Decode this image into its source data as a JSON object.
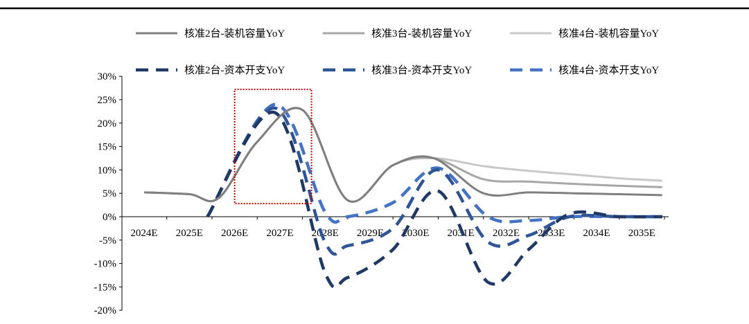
{
  "chart_data": {
    "type": "line",
    "title": "",
    "xlabel": "",
    "ylabel": "",
    "categories": [
      "2024E",
      "2025E",
      "2026E",
      "2027E",
      "2028E",
      "2029E",
      "2030E",
      "2031E",
      "2032E",
      "2033E",
      "2034E",
      "2035E"
    ],
    "ylim": [
      -0.2,
      0.3
    ],
    "yticks": [
      "-20%",
      "-15%",
      "-10%",
      "-5%",
      "0%",
      "5%",
      "10%",
      "15%",
      "20%",
      "25%",
      "30%"
    ],
    "legend_position": "top",
    "series": [
      {
        "name": "核准2台-装机容量YoY",
        "style": "solid",
        "color": "#7f7f7f",
        "x": [
          "2024E",
          "2025E",
          "2026E",
          "2026E",
          "2027E",
          "2028E",
          "2029E",
          "2030E",
          "2031E",
          "2032E",
          "2033E",
          "2034E",
          "2035E"
        ],
        "points": [
          [
            0,
            0.052
          ],
          [
            1,
            0.048
          ],
          [
            1.65,
            0.04
          ],
          [
            2.5,
            0.16
          ],
          [
            3.5,
            0.228
          ],
          [
            4.5,
            0.035
          ],
          [
            5.5,
            0.11
          ],
          [
            6.4,
            0.125
          ],
          [
            7.5,
            0.05
          ],
          [
            8.5,
            0.052
          ],
          [
            9.5,
            0.05
          ],
          [
            10.5,
            0.048
          ],
          [
            11.45,
            0.046
          ]
        ]
      },
      {
        "name": "核准3台-装机容量YoY",
        "style": "solid",
        "color": "#a6a6a6",
        "points": [
          [
            0,
            0.052
          ],
          [
            1,
            0.048
          ],
          [
            1.65,
            0.04
          ],
          [
            2.5,
            0.16
          ],
          [
            3.5,
            0.228
          ],
          [
            4.5,
            0.035
          ],
          [
            5.5,
            0.11
          ],
          [
            6.4,
            0.125
          ],
          [
            7.5,
            0.08
          ],
          [
            8.5,
            0.075
          ],
          [
            9.5,
            0.07
          ],
          [
            10.5,
            0.066
          ],
          [
            11.45,
            0.063
          ]
        ]
      },
      {
        "name": "核准4台-装机容量YoY",
        "style": "solid",
        "color": "#c8c8c8",
        "points": [
          [
            0,
            0.052
          ],
          [
            1,
            0.048
          ],
          [
            1.65,
            0.04
          ],
          [
            2.5,
            0.16
          ],
          [
            3.5,
            0.228
          ],
          [
            4.5,
            0.035
          ],
          [
            5.5,
            0.11
          ],
          [
            6.4,
            0.125
          ],
          [
            7.5,
            0.108
          ],
          [
            8.5,
            0.098
          ],
          [
            9.5,
            0.09
          ],
          [
            10.5,
            0.082
          ],
          [
            11.45,
            0.077
          ]
        ]
      },
      {
        "name": "核准2台-资本开支YoY",
        "style": "dashed",
        "color": "#1f3864",
        "points": [
          [
            1.4,
            0.0
          ],
          [
            2.9,
            0.222
          ],
          [
            4.0,
            -0.12
          ],
          [
            4.5,
            -0.13
          ],
          [
            5.5,
            -0.07
          ],
          [
            6.5,
            0.055
          ],
          [
            7.6,
            -0.14
          ],
          [
            8.5,
            -0.07
          ],
          [
            9.4,
            0.006
          ],
          [
            10.5,
            0.0
          ],
          [
            11.45,
            0.0
          ]
        ]
      },
      {
        "name": "核准3台-资本开支YoY",
        "style": "dashed",
        "color": "#2f5597",
        "points": [
          [
            1.4,
            0.0
          ],
          [
            2.9,
            0.232
          ],
          [
            4.0,
            -0.055
          ],
          [
            4.5,
            -0.062
          ],
          [
            5.5,
            -0.025
          ],
          [
            6.5,
            0.1
          ],
          [
            7.6,
            -0.054
          ],
          [
            8.5,
            -0.04
          ],
          [
            9.4,
            0.0
          ],
          [
            10.5,
            0.0
          ],
          [
            11.45,
            0.0
          ]
        ]
      },
      {
        "name": "核准4台-资本开支YoY",
        "style": "dashed",
        "color": "#4472c4",
        "points": [
          [
            1.4,
            0.0
          ],
          [
            2.9,
            0.24
          ],
          [
            4.0,
            0.01
          ],
          [
            4.5,
            0.0
          ],
          [
            5.5,
            0.03
          ],
          [
            6.5,
            0.104
          ],
          [
            7.6,
            0.0
          ],
          [
            8.5,
            -0.008
          ],
          [
            9.4,
            0.0
          ],
          [
            10.5,
            0.0
          ],
          [
            11.45,
            0.0
          ]
        ]
      }
    ],
    "annotations": [
      {
        "type": "dotted-box",
        "color": "#c00000",
        "x_range": [
          2.0,
          3.7
        ],
        "y_range": [
          0.028,
          0.272
        ]
      }
    ]
  }
}
